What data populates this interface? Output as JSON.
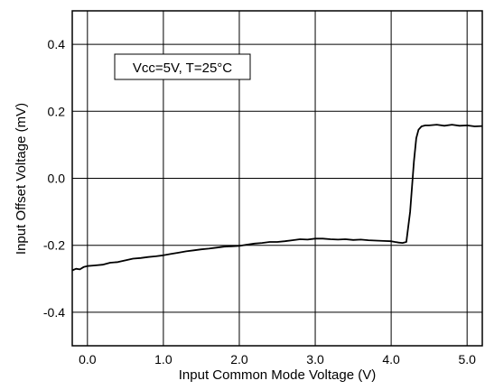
{
  "chart_data": {
    "type": "line",
    "title": "",
    "xlabel": "Input Common Mode Voltage (V)",
    "ylabel": "Input Offset Voltage (mV)",
    "xlim": [
      -0.2,
      5.2
    ],
    "ylim": [
      -0.5,
      0.5
    ],
    "grid": true,
    "x_ticks": [
      0.0,
      1.0,
      2.0,
      3.0,
      4.0,
      5.0
    ],
    "x_tick_labels": [
      "0.0",
      "1.0",
      "2.0",
      "3.0",
      "4.0",
      "5.0"
    ],
    "y_ticks": [
      0.4,
      0.2,
      0.0,
      -0.2,
      -0.4
    ],
    "y_tick_labels": [
      "0.4",
      "0.2",
      "0.0",
      "-0.2",
      "-0.4"
    ],
    "annotation": "Vcc=5V, T=25°C",
    "series": [
      {
        "x": [
          -0.2,
          -0.15,
          -0.1,
          -0.05,
          0.0,
          0.1,
          0.2,
          0.3,
          0.4,
          0.5,
          0.6,
          0.7,
          0.8,
          0.9,
          1.0,
          1.1,
          1.2,
          1.3,
          1.4,
          1.5,
          1.6,
          1.7,
          1.8,
          1.9,
          2.0,
          2.1,
          2.2,
          2.3,
          2.4,
          2.5,
          2.6,
          2.7,
          2.8,
          2.9,
          3.0,
          3.1,
          3.2,
          3.3,
          3.4,
          3.5,
          3.6,
          3.7,
          3.8,
          3.9,
          4.0,
          4.05,
          4.1,
          4.15,
          4.2,
          4.25,
          4.3,
          4.33,
          4.36,
          4.4,
          4.45,
          4.5,
          4.6,
          4.7,
          4.8,
          4.9,
          5.0,
          5.1,
          5.2
        ],
        "y": [
          -0.275,
          -0.27,
          -0.272,
          -0.265,
          -0.262,
          -0.26,
          -0.258,
          -0.252,
          -0.25,
          -0.245,
          -0.24,
          -0.238,
          -0.235,
          -0.233,
          -0.23,
          -0.226,
          -0.222,
          -0.218,
          -0.215,
          -0.212,
          -0.21,
          -0.207,
          -0.204,
          -0.203,
          -0.202,
          -0.198,
          -0.195,
          -0.193,
          -0.19,
          -0.19,
          -0.188,
          -0.185,
          -0.182,
          -0.183,
          -0.18,
          -0.18,
          -0.182,
          -0.183,
          -0.182,
          -0.184,
          -0.183,
          -0.185,
          -0.186,
          -0.187,
          -0.188,
          -0.19,
          -0.192,
          -0.193,
          -0.19,
          -0.1,
          0.05,
          0.12,
          0.145,
          0.155,
          0.158,
          0.158,
          0.16,
          0.157,
          0.16,
          0.157,
          0.158,
          0.155,
          0.156
        ]
      }
    ]
  }
}
